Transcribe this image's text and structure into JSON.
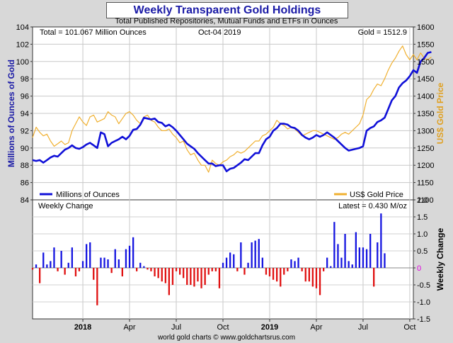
{
  "chart_data": [
    {
      "type": "line",
      "title": "Weekly Transparent Gold Holdings",
      "subtitle": "Total Published Repositories, Mutual Funds and ETFs in Ounces",
      "total_label": "Total = 101.067 Million Ounces",
      "date_label": "Oct-04  2019",
      "gold_label": "Gold = 1512.9",
      "ylabel_left": "Millions of Ounces of Gold",
      "ylabel_right": "US$ Gold Price",
      "y_left_ticks": [
        "84",
        "86",
        "88",
        "90",
        "92",
        "94",
        "96",
        "98",
        "100",
        "102",
        "104"
      ],
      "y_right_ticks": [
        "1100",
        "1150",
        "1200",
        "1250",
        "1300",
        "1350",
        "1400",
        "1450",
        "1500",
        "1550",
        "1600"
      ],
      "ylim_left": [
        84,
        104
      ],
      "ylim_right": [
        1100,
        1600
      ],
      "x_ticks": [
        {
          "label": "2018",
          "week": 36,
          "bold": true
        },
        {
          "label": "Apr",
          "week": 49,
          "bold": false
        },
        {
          "label": "Jul",
          "week": 62,
          "bold": false
        },
        {
          "label": "Oct",
          "week": 75,
          "bold": false
        },
        {
          "label": "2019",
          "week": 88,
          "bold": true
        },
        {
          "label": "Apr",
          "week": 101,
          "bold": false
        },
        {
          "label": "Jul",
          "week": 114,
          "bold": false
        },
        {
          "label": "Oct",
          "week": 127,
          "bold": false
        }
      ],
      "x_range_weeks": [
        22,
        128
      ],
      "legend_ounces": "Millions of Ounces",
      "legend_gold": "US$ Gold Price",
      "colors": {
        "ounces": "#1010d8",
        "gold": "#f0b030",
        "positive": "#1414e0",
        "negative": "#e01010",
        "axis_title": "#1a1aa6"
      },
      "series": [
        {
          "name": "Millions of Ounces",
          "axis": "left",
          "start_week": 22,
          "values": [
            88.6,
            88.5,
            88.6,
            88.3,
            88.6,
            88.9,
            89.1,
            89.0,
            89.4,
            89.8,
            90.0,
            90.3,
            90.0,
            89.9,
            90.1,
            90.4,
            90.6,
            90.3,
            90.0,
            91.8,
            91.6,
            90.2,
            90.6,
            90.8,
            91.0,
            91.3,
            91.0,
            91.4,
            92.1,
            92.2,
            92.7,
            93.5,
            93.4,
            93.3,
            93.4,
            93.0,
            92.9,
            92.5,
            92.7,
            92.4,
            92.0,
            91.5,
            91.0,
            90.5,
            90.2,
            89.9,
            89.4,
            89.0,
            88.6,
            88.2,
            88.2,
            87.9,
            88.0,
            88.0,
            87.3,
            87.6,
            87.7,
            88.0,
            88.3,
            88.7,
            88.6,
            89.0,
            89.4,
            89.4,
            90.3,
            91.0,
            91.3,
            92.0,
            92.3,
            92.8,
            92.8,
            92.7,
            92.4,
            92.3,
            92.0,
            91.5,
            91.2,
            91.0,
            91.2,
            91.5,
            91.3,
            91.5,
            91.8,
            91.5,
            91.2,
            90.8,
            90.4,
            90.0,
            89.7,
            89.8,
            89.9,
            90.0,
            90.2,
            92.0,
            92.3,
            92.5,
            93.0,
            93.2,
            93.5,
            94.5,
            95.5,
            96.0,
            97.0,
            97.5,
            97.8,
            98.3,
            99.0,
            98.7,
            100.0,
            100.4,
            101.0,
            101.1
          ]
        },
        {
          "name": "US$ Gold Price",
          "axis": "right",
          "start_week": 22,
          "values": [
            1280,
            1310,
            1295,
            1285,
            1290,
            1270,
            1255,
            1262,
            1270,
            1260,
            1265,
            1300,
            1320,
            1340,
            1325,
            1315,
            1340,
            1345,
            1325,
            1330,
            1335,
            1355,
            1345,
            1340,
            1320,
            1335,
            1350,
            1355,
            1345,
            1330,
            1320,
            1340,
            1345,
            1330,
            1325,
            1310,
            1300,
            1300,
            1305,
            1290,
            1280,
            1265,
            1270,
            1245,
            1230,
            1235,
            1215,
            1200,
            1200,
            1180,
            1215,
            1205,
            1200,
            1210,
            1215,
            1225,
            1230,
            1240,
            1235,
            1240,
            1250,
            1260,
            1270,
            1270,
            1285,
            1290,
            1300,
            1310,
            1330,
            1320,
            1315,
            1305,
            1310,
            1305,
            1295,
            1285,
            1290,
            1295,
            1300,
            1300,
            1295,
            1290,
            1285,
            1280,
            1275,
            1280,
            1290,
            1295,
            1290,
            1300,
            1310,
            1320,
            1345,
            1390,
            1400,
            1420,
            1435,
            1430,
            1450,
            1475,
            1495,
            1510,
            1530,
            1545,
            1520,
            1505,
            1520,
            1505,
            1525,
            1510,
            1505,
            1513
          ]
        }
      ]
    },
    {
      "type": "bar",
      "title": "Weekly Change",
      "latest_label": "Latest = 0.430 M/oz",
      "ylabel": "Weekly Change",
      "ylim": [
        -1.5,
        2.0
      ],
      "y_ticks": [
        "-1.5",
        "-1.0",
        "-0.5",
        "0",
        "0.5",
        "1.0",
        "1.5",
        "2.0"
      ],
      "start_week": 22,
      "values": [
        -0.05,
        0.1,
        -0.45,
        0.45,
        0.1,
        0.2,
        0.6,
        -0.1,
        0.5,
        -0.2,
        0.15,
        0.6,
        -0.25,
        -0.1,
        0.2,
        0.7,
        0.75,
        -0.35,
        -1.1,
        0.3,
        0.3,
        0.25,
        -0.15,
        0.55,
        0.25,
        -0.25,
        0.55,
        0.65,
        0.9,
        -0.1,
        0.15,
        0.05,
        -0.05,
        -0.1,
        -0.25,
        -0.3,
        -0.4,
        -0.45,
        -0.8,
        -0.5,
        -0.1,
        -0.2,
        -0.3,
        -0.5,
        -0.5,
        -0.55,
        -0.4,
        -0.6,
        -0.5,
        -0.2,
        -0.1,
        -0.1,
        -0.6,
        0.15,
        0.3,
        0.45,
        0.4,
        -0.1,
        0.75,
        -0.2,
        0.15,
        0.75,
        0.8,
        0.85,
        0.3,
        -0.2,
        -0.25,
        -0.35,
        -0.4,
        -0.55,
        -0.2,
        -0.1,
        0.25,
        0.2,
        0.3,
        -0.1,
        -0.4,
        -0.4,
        -0.55,
        -0.6,
        -0.8,
        -0.1,
        0.3,
        0.05,
        1.35,
        0.7,
        0.3,
        1.0,
        0.2,
        0.1,
        1.05,
        0.6,
        0.6,
        0.55,
        1.0,
        -0.55,
        0.75,
        1.6,
        0.43
      ]
    }
  ],
  "footer": "world gold charts © www.goldchartsrus.com"
}
